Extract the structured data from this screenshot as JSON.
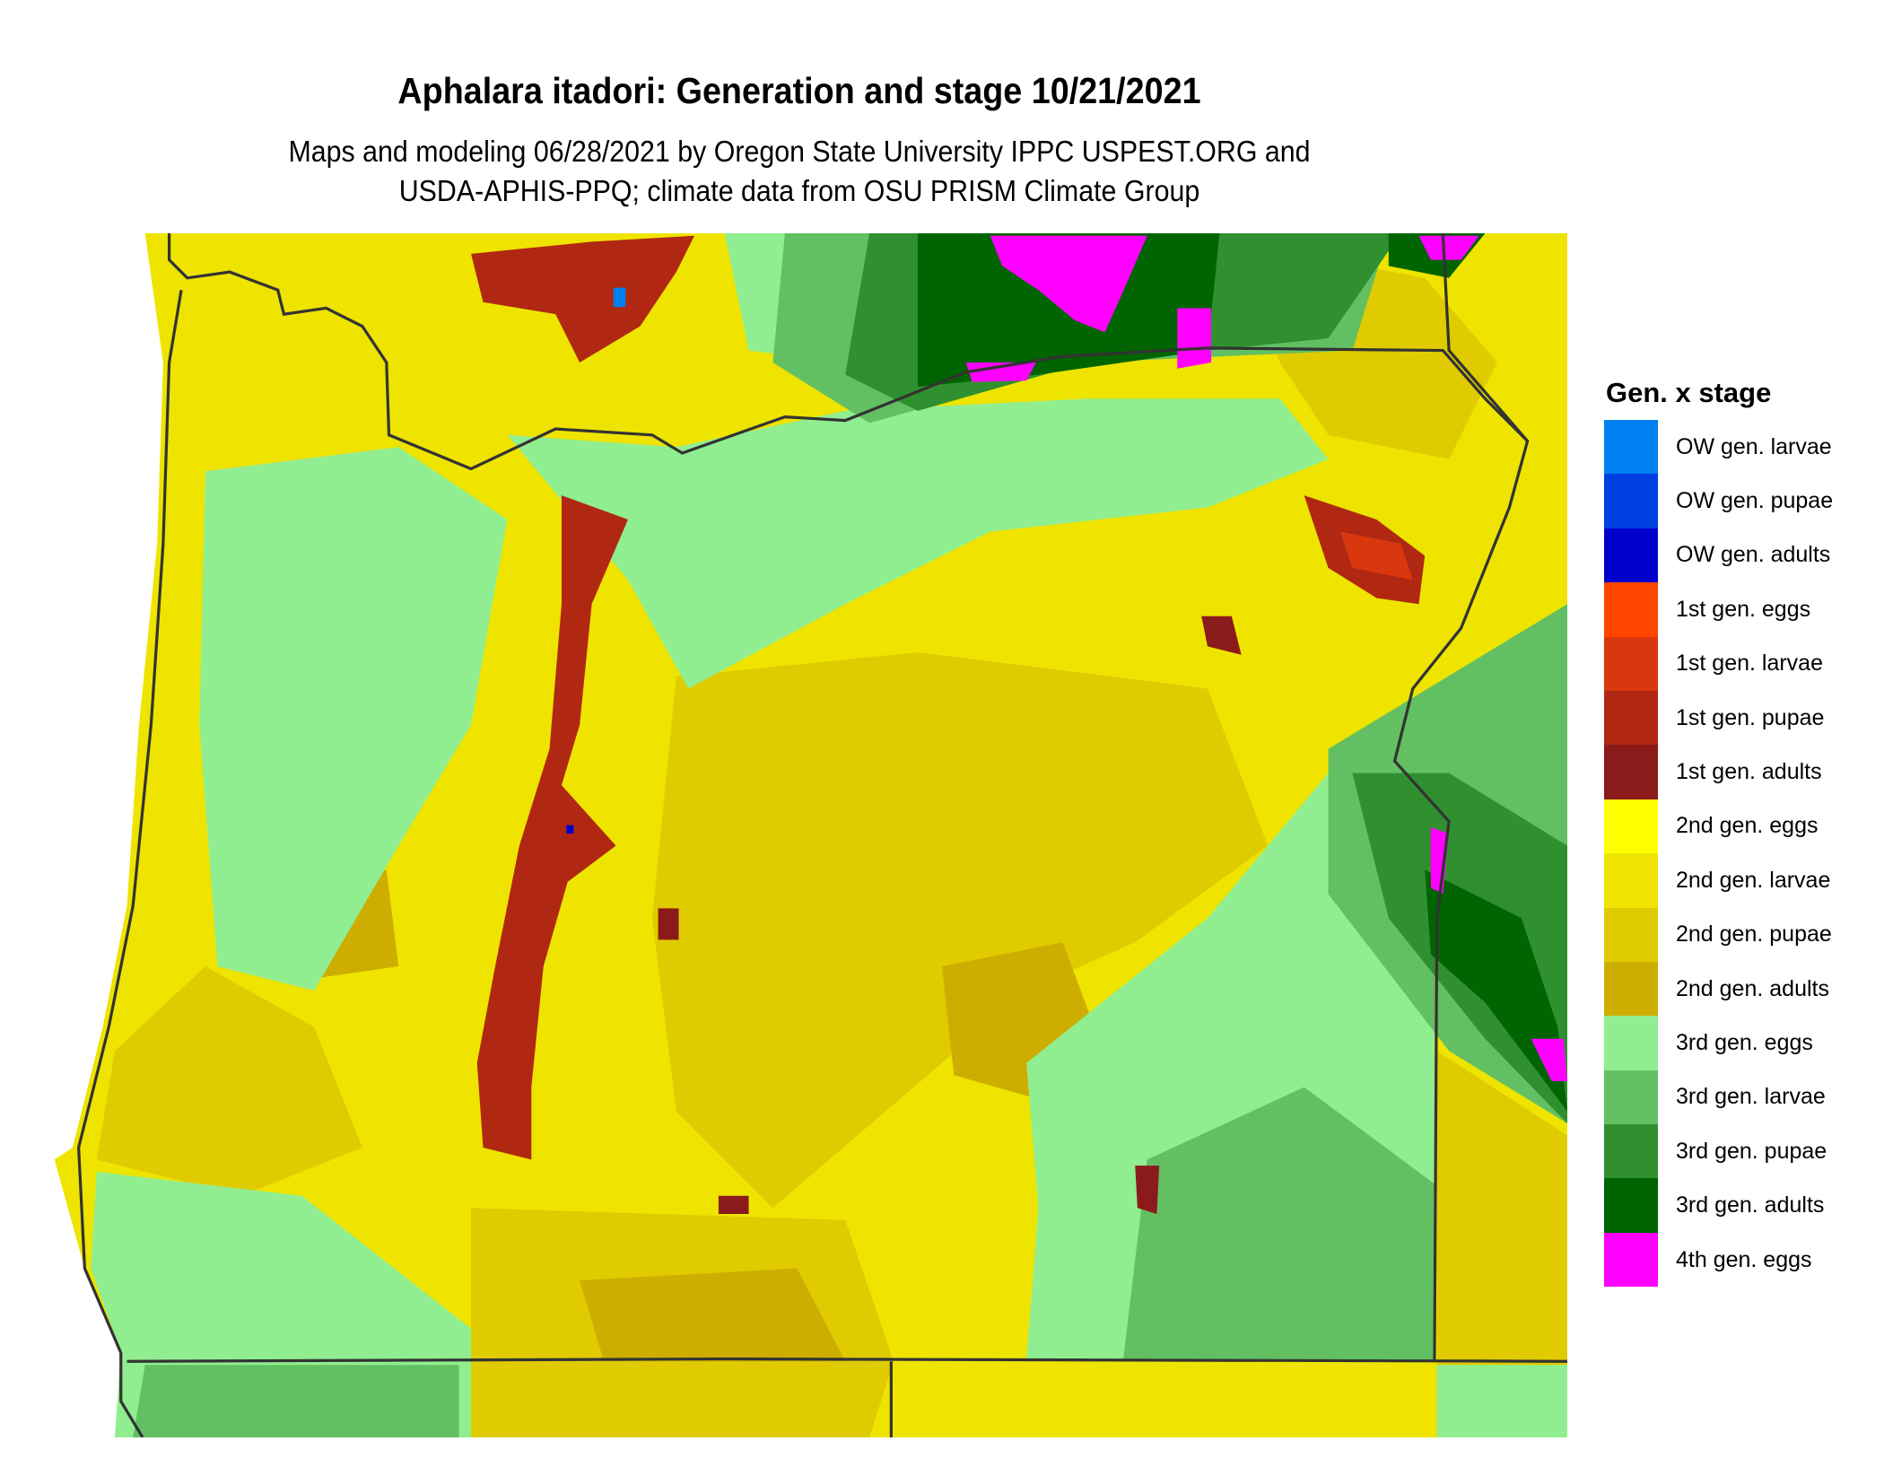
{
  "title": "Aphalara itadori: Generation and stage 10/21/2021",
  "subtitle_line1": "Maps and modeling 06/28/2021 by Oregon State University IPPC USPEST.ORG and",
  "subtitle_line2": "USDA-APHIS-PPQ; climate data from OSU PRISM Climate Group",
  "legend": {
    "title": "Gen. x stage",
    "items": [
      {
        "label": "OW gen. larvae",
        "color": "#0080f0"
      },
      {
        "label": "OW gen. pupae",
        "color": "#0040e0"
      },
      {
        "label": "OW gen. adults",
        "color": "#0000cc"
      },
      {
        "label": "1st gen. eggs",
        "color": "#ff4500"
      },
      {
        "label": "1st gen. larvae",
        "color": "#d9380e"
      },
      {
        "label": "1st gen. pupae",
        "color": "#b02812"
      },
      {
        "label": "1st gen. adults",
        "color": "#8b1a1a"
      },
      {
        "label": "2nd gen. eggs",
        "color": "#ffff00"
      },
      {
        "label": "2nd gen. larvae",
        "color": "#eee400"
      },
      {
        "label": "2nd gen. pupae",
        "color": "#dfcb00"
      },
      {
        "label": "2nd gen. adults",
        "color": "#cdae00"
      },
      {
        "label": "3rd gen. eggs",
        "color": "#90ee90"
      },
      {
        "label": "3rd gen. larvae",
        "color": "#62c062"
      },
      {
        "label": "3rd gen. pupae",
        "color": "#309030"
      },
      {
        "label": "3rd gen. adults",
        "color": "#006400"
      },
      {
        "label": "4th gen. eggs",
        "color": "#ff00ff"
      }
    ]
  },
  "boundary_color": "#333333"
}
